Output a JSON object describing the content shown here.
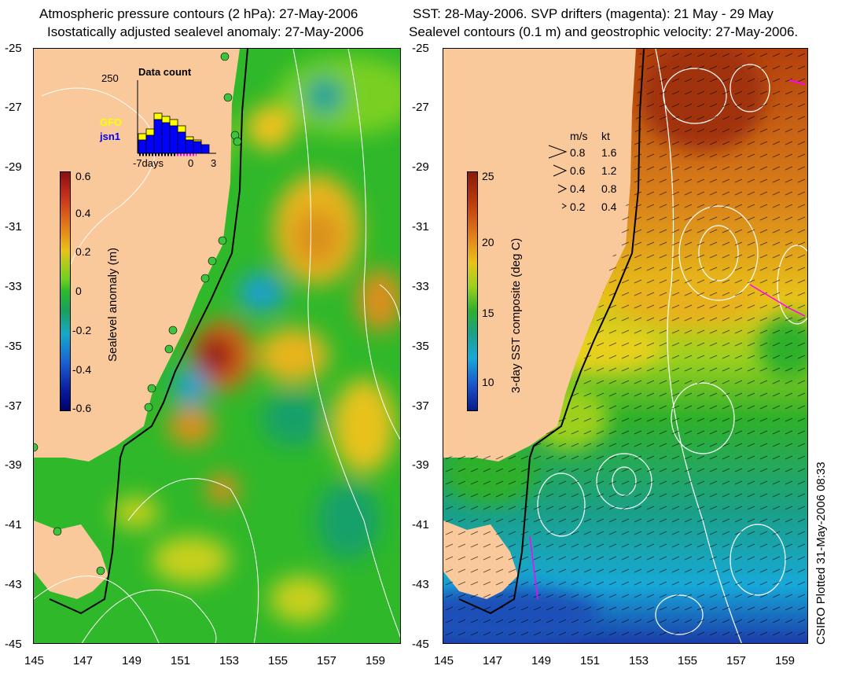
{
  "left_panel": {
    "title_line1": "Atmospheric pressure contours (2 hPa): 27-May-2006",
    "title_line2": "Isostatically adjusted sealevel anomaly: 27-May-2006",
    "colorbar_label": "Sealevel anomaly (m)",
    "colorbar_ticks": [
      "0.6",
      "0.4",
      "0.2",
      "0",
      "-0.2",
      "-0.4",
      "-0.6"
    ],
    "inset": {
      "title": "Data count",
      "max_label": "250",
      "x_ticks": [
        "-7days",
        "0",
        "3"
      ],
      "series": [
        {
          "name": "GFO",
          "color": "#ffff00"
        },
        {
          "name": "jsn1",
          "color": "#0000ff"
        }
      ]
    }
  },
  "right_panel": {
    "title_line1": "SST: 28-May-2006. SVP drifters (magenta): 21 May - 29 May",
    "title_line2": "Sealevel contours (0.1 m) and geostrophic velocity: 27-May-2006.",
    "colorbar_label": "3-day SST composite (deg C)",
    "colorbar_ticks": [
      "25",
      "20",
      "15",
      "10"
    ],
    "velocity_legend": {
      "header_ms": "m/s",
      "header_kt": "kt",
      "rows": [
        {
          "ms": "0.8",
          "kt": "1.6"
        },
        {
          "ms": "0.6",
          "kt": "1.2"
        },
        {
          "ms": "0.4",
          "kt": "0.8"
        },
        {
          "ms": "0.2",
          "kt": "0.4"
        }
      ]
    }
  },
  "y_ticks": [
    "-25",
    "-27",
    "-29",
    "-31",
    "-33",
    "-35",
    "-37",
    "-39",
    "-41",
    "-43",
    "-45"
  ],
  "x_ticks": [
    "145",
    "147",
    "149",
    "151",
    "153",
    "155",
    "157",
    "159"
  ],
  "credit": "CSIRO Plotted 31-May-2006 08:33",
  "colors": {
    "land": "#f9c89b",
    "anomaly_base": "#2fb82a",
    "anomaly_high": "#8b0f0f",
    "anomaly_low": "#00008b",
    "sst_warm": "#b4400d",
    "sst_cold": "#1a3aa8"
  }
}
